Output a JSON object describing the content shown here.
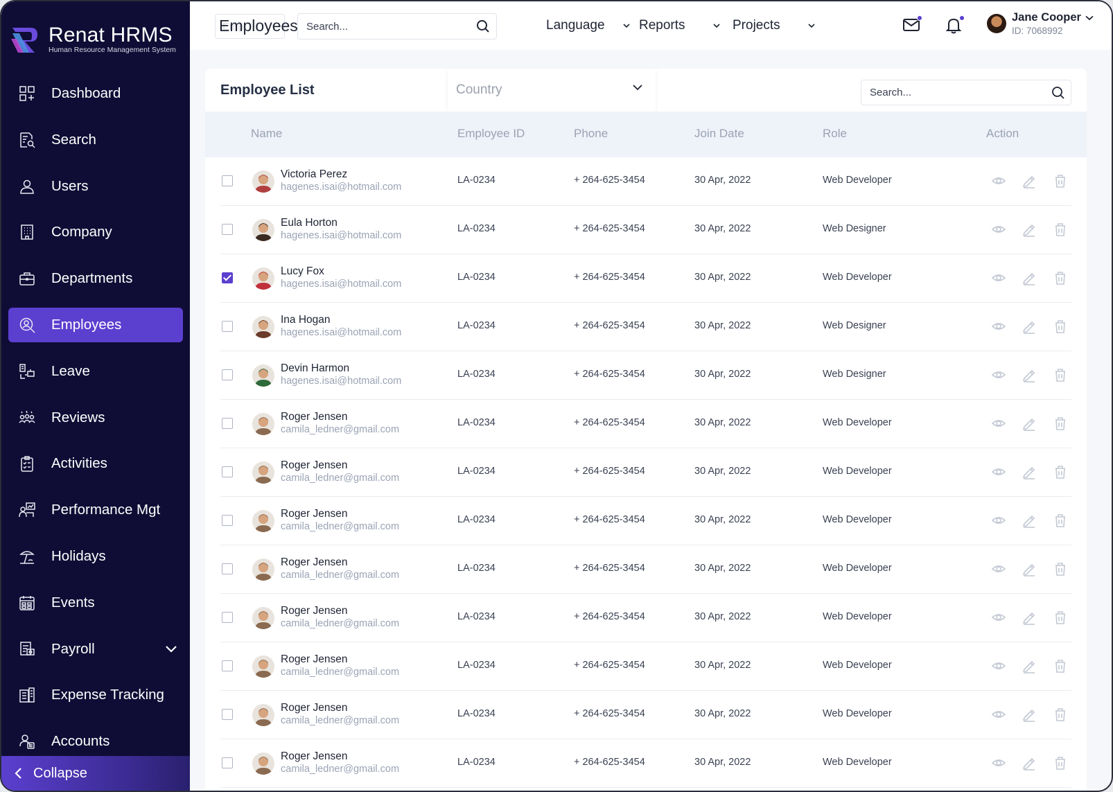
{
  "app": {
    "name": "Renat HRMS",
    "subtitle": "Human Resource Management System",
    "accent": "#5b3fcf",
    "sidebar_bg": "#0f0d35"
  },
  "sidebar": {
    "items": [
      {
        "label": "Dashboard",
        "icon": "dashboard-icon"
      },
      {
        "label": "Search",
        "icon": "search-doc-icon"
      },
      {
        "label": "Users",
        "icon": "user-icon"
      },
      {
        "label": "Company",
        "icon": "building-icon"
      },
      {
        "label": "Departments",
        "icon": "briefcase-icon"
      },
      {
        "label": "Employees",
        "icon": "employee-search-icon",
        "active": true
      },
      {
        "label": "Leave",
        "icon": "leave-icon"
      },
      {
        "label": "Reviews",
        "icon": "reviews-icon"
      },
      {
        "label": "Activities",
        "icon": "clipboard-icon"
      },
      {
        "label": "Performance Mgt",
        "icon": "performance-icon"
      },
      {
        "label": "Holidays",
        "icon": "beach-icon"
      },
      {
        "label": "Events",
        "icon": "calendar-icon"
      },
      {
        "label": "Payroll",
        "icon": "payroll-icon"
      },
      {
        "label": "Expense Tracking",
        "icon": "expense-icon"
      },
      {
        "label": "Accounts",
        "icon": "accounts-icon"
      }
    ],
    "collapse_label": "Collapse"
  },
  "header": {
    "page_title": "Employees",
    "filter_text": "Emp",
    "search_placeholder": "Search...",
    "menus": [
      "Language",
      "Reports",
      "Projects"
    ],
    "user": {
      "name": "Jane Cooper",
      "id": "ID: 7068992"
    }
  },
  "card": {
    "title": "Employee List",
    "country_placeholder": "Country",
    "search_placeholder": "Search...",
    "columns": [
      "Name",
      "Employee ID",
      "Phone",
      "Join Date",
      "Role",
      "Action"
    ],
    "rows": [
      {
        "name": "Victoria Perez",
        "email": "hagenes.isai@hotmail.com",
        "emp_id": "LA-0234",
        "phone": "+ 264-625-3454",
        "join": "30 Apr, 2022",
        "role": "Web Developer",
        "checked": false,
        "avatar": "#b04040"
      },
      {
        "name": "Eula Horton",
        "email": "hagenes.isai@hotmail.com",
        "emp_id": "LA-0234",
        "phone": "+ 264-625-3454",
        "join": "30 Apr, 2022",
        "role": "Web Designer",
        "checked": false,
        "avatar": "#3a2a20"
      },
      {
        "name": "Lucy Fox",
        "email": "hagenes.isai@hotmail.com",
        "emp_id": "LA-0234",
        "phone": "+ 264-625-3454",
        "join": "30 Apr, 2022",
        "role": "Web Developer",
        "checked": true,
        "avatar": "#c0303a"
      },
      {
        "name": "Ina Hogan",
        "email": "hagenes.isai@hotmail.com",
        "emp_id": "LA-0234",
        "phone": "+ 264-625-3454",
        "join": "30 Apr, 2022",
        "role": "Web Designer",
        "checked": false,
        "avatar": "#6a3a2a"
      },
      {
        "name": "Devin Harmon",
        "email": "hagenes.isai@hotmail.com",
        "emp_id": "LA-0234",
        "phone": "+ 264-625-3454",
        "join": "30 Apr, 2022",
        "role": "Web Designer",
        "checked": false,
        "avatar": "#2f6a3a"
      },
      {
        "name": "Roger Jensen",
        "email": "camila_ledner@gmail.com",
        "emp_id": "LA-0234",
        "phone": "+ 264-625-3454",
        "join": "30 Apr, 2022",
        "role": "Web Developer",
        "checked": false,
        "avatar": "#8a6a50"
      },
      {
        "name": "Roger Jensen",
        "email": "camila_ledner@gmail.com",
        "emp_id": "LA-0234",
        "phone": "+ 264-625-3454",
        "join": "30 Apr, 2022",
        "role": "Web Developer",
        "checked": false,
        "avatar": "#8a6a50"
      },
      {
        "name": "Roger Jensen",
        "email": "camila_ledner@gmail.com",
        "emp_id": "LA-0234",
        "phone": "+ 264-625-3454",
        "join": "30 Apr, 2022",
        "role": "Web Developer",
        "checked": false,
        "avatar": "#8a6a50"
      },
      {
        "name": "Roger Jensen",
        "email": "camila_ledner@gmail.com",
        "emp_id": "LA-0234",
        "phone": "+ 264-625-3454",
        "join": "30 Apr, 2022",
        "role": "Web Developer",
        "checked": false,
        "avatar": "#8a6a50"
      },
      {
        "name": "Roger Jensen",
        "email": "camila_ledner@gmail.com",
        "emp_id": "LA-0234",
        "phone": "+ 264-625-3454",
        "join": "30 Apr, 2022",
        "role": "Web Developer",
        "checked": false,
        "avatar": "#8a6a50"
      },
      {
        "name": "Roger Jensen",
        "email": "camila_ledner@gmail.com",
        "emp_id": "LA-0234",
        "phone": "+ 264-625-3454",
        "join": "30 Apr, 2022",
        "role": "Web Developer",
        "checked": false,
        "avatar": "#8a6a50"
      },
      {
        "name": "Roger Jensen",
        "email": "camila_ledner@gmail.com",
        "emp_id": "LA-0234",
        "phone": "+ 264-625-3454",
        "join": "30 Apr, 2022",
        "role": "Web Developer",
        "checked": false,
        "avatar": "#8a6a50"
      },
      {
        "name": "Roger Jensen",
        "email": "camila_ledner@gmail.com",
        "emp_id": "LA-0234",
        "phone": "+ 264-625-3454",
        "join": "30 Apr, 2022",
        "role": "Web Developer",
        "checked": false,
        "avatar": "#8a6a50"
      }
    ]
  }
}
